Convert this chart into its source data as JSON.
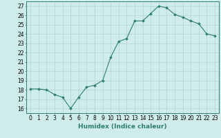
{
  "x": [
    0,
    1,
    2,
    3,
    4,
    5,
    6,
    7,
    8,
    9,
    10,
    11,
    12,
    13,
    14,
    15,
    16,
    17,
    18,
    19,
    20,
    21,
    22,
    23
  ],
  "y": [
    18.1,
    18.1,
    18.0,
    17.5,
    17.2,
    16.0,
    17.2,
    18.3,
    18.5,
    19.0,
    21.5,
    23.2,
    23.5,
    25.4,
    25.4,
    26.2,
    27.0,
    26.8,
    26.1,
    25.8,
    25.4,
    25.1,
    24.0,
    23.8
  ],
  "xlabel": "Humidex (Indice chaleur)",
  "yticks": [
    16,
    17,
    18,
    19,
    20,
    21,
    22,
    23,
    24,
    25,
    26,
    27
  ],
  "xticks": [
    0,
    1,
    2,
    3,
    4,
    5,
    6,
    7,
    8,
    9,
    10,
    11,
    12,
    13,
    14,
    15,
    16,
    17,
    18,
    19,
    20,
    21,
    22,
    23
  ],
  "ylim": [
    15.5,
    27.5
  ],
  "xlim": [
    -0.5,
    23.5
  ],
  "line_color": "#2d7d6e",
  "marker": "D",
  "marker_size": 1.8,
  "bg_color": "#ceecea",
  "grid_color": "#b0d4d0",
  "xlabel_fontsize": 6.5,
  "tick_fontsize": 5.5
}
